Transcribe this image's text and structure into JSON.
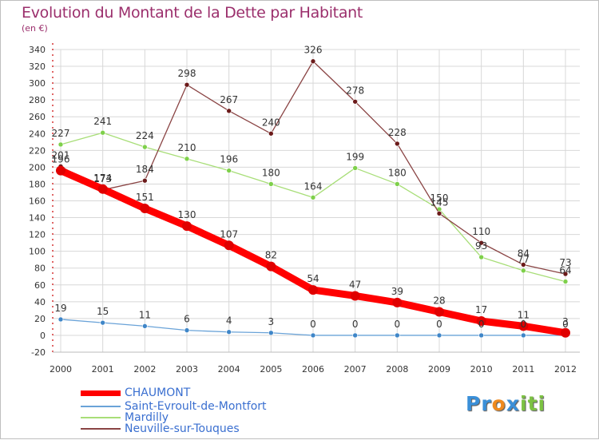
{
  "header": {
    "title": "Evolution du Montant de la Dette par Habitant",
    "subtitle": "(en €)"
  },
  "chart_data": {
    "type": "line",
    "title": "Evolution du Montant de la Dette par Habitant",
    "ylabel": "(en €)",
    "xlabel": "",
    "categories": [
      "2000",
      "2001",
      "2002",
      "2003",
      "2004",
      "2005",
      "2006",
      "2007",
      "2008",
      "2009",
      "2010",
      "2011",
      "2012"
    ],
    "ylim": [
      -20,
      340
    ],
    "yticks": [
      -20,
      0,
      20,
      40,
      60,
      80,
      100,
      120,
      140,
      160,
      180,
      200,
      220,
      240,
      260,
      280,
      300,
      320,
      340
    ],
    "grid": true,
    "legend_position": "bottom-left",
    "series": [
      {
        "name": "CHAUMONT",
        "color": "#ff0000",
        "marker": "#e00000",
        "values": [
          196,
          174,
          151,
          130,
          107,
          82,
          54,
          47,
          39,
          28,
          17,
          11,
          3
        ]
      },
      {
        "name": "Saint-Evroult-de-Montfort",
        "color": "#6aa3d8",
        "marker": "#3f86c8",
        "values": [
          19,
          15,
          11,
          6,
          4,
          3,
          0,
          0,
          0,
          0,
          0,
          0,
          0
        ]
      },
      {
        "name": "Mardilly",
        "color": "#a8de78",
        "marker": "#7ed04a",
        "values": [
          227,
          241,
          224,
          210,
          196,
          180,
          164,
          199,
          180,
          150,
          93,
          77,
          64
        ]
      },
      {
        "name": "Neuville-sur-Touques",
        "color": "#8a4444",
        "marker": "#6b1a1a",
        "values": [
          201,
          173,
          184,
          298,
          267,
          240,
          326,
          278,
          228,
          145,
          110,
          84,
          73
        ]
      }
    ]
  },
  "logo": {
    "letters": [
      "P",
      "r",
      "o",
      "x",
      "i",
      "t",
      "i"
    ],
    "colors": [
      "#3a8fd8",
      "#3a8fd8",
      "#f08a1e",
      "#3a8fd8",
      "#7cc242",
      "#7cc242",
      "#7cc242"
    ]
  }
}
